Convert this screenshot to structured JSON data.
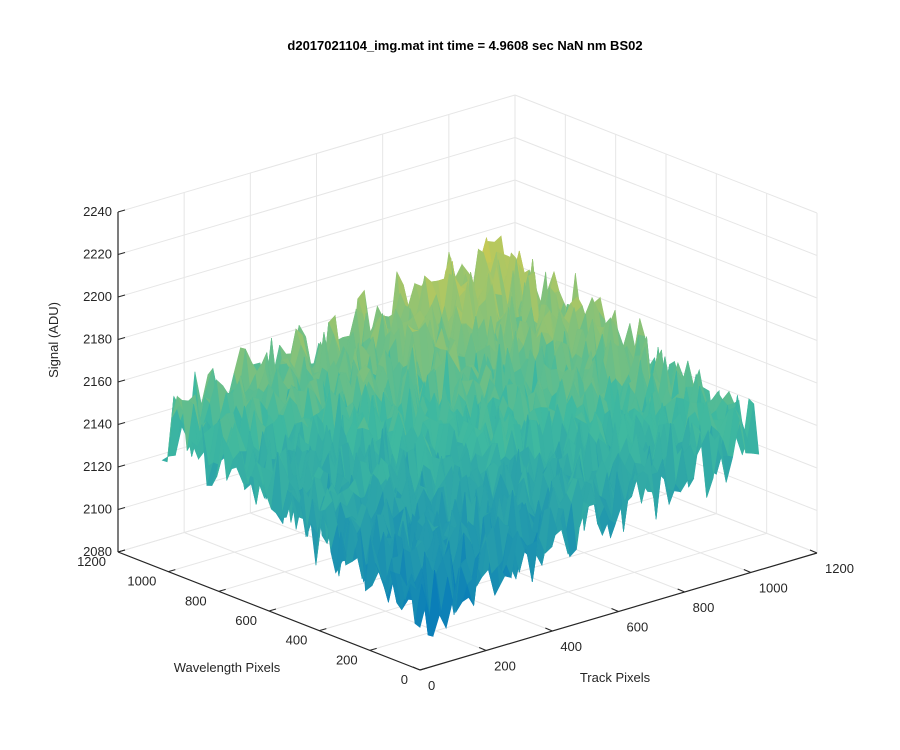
{
  "chart_data": {
    "type": "surface",
    "title": "d2017021104_img.mat int time = 4.9608 sec  NaN nm BS02",
    "xlabel": "Track Pixels",
    "ylabel": "Wavelength Pixels",
    "zlabel": "Signal (ADU)",
    "xlim": [
      0,
      1200
    ],
    "ylim": [
      0,
      1200
    ],
    "zlim": [
      2080,
      2240
    ],
    "x_ticks": [
      "0",
      "200",
      "400",
      "600",
      "800",
      "1000",
      "1200"
    ],
    "y_ticks": [
      "0",
      "200",
      "400",
      "600",
      "800",
      "1000",
      "1200"
    ],
    "z_ticks": [
      "2080",
      "2100",
      "2120",
      "2140",
      "2160",
      "2180",
      "2200",
      "2220",
      "2240"
    ],
    "grid": true,
    "colormap": "parula",
    "surface_summary": {
      "x_extent": [
        0,
        1024
      ],
      "y_extent": [
        0,
        1024
      ],
      "z_center_at_corners": {
        "near": 2110,
        "left": 2150,
        "right": 2145,
        "far": 2180
      },
      "noise_amplitude": 15,
      "z_min_observed": 2085,
      "z_max_observed": 2230
    }
  },
  "colors": {
    "axis": "#262626",
    "grid": "#e6e6e6",
    "surface_low": "#0072bd",
    "surface_mid": "#3fb9a0",
    "surface_high": "#f9d03a"
  }
}
